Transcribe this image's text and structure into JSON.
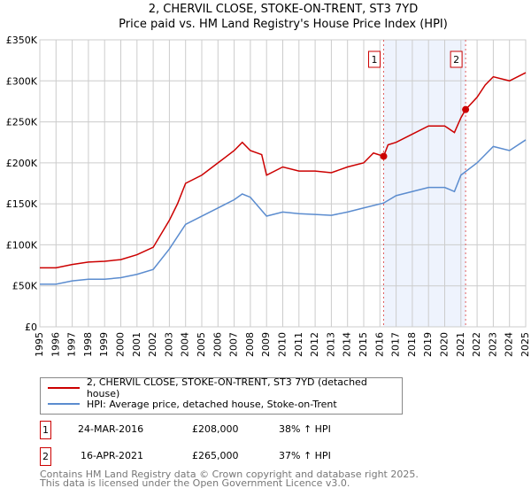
{
  "title_line1": "2, CHERVIL CLOSE, STOKE-ON-TRENT, ST3 7YD",
  "title_line2": "Price paid vs. HM Land Registry's House Price Index (HPI)",
  "chart_data": {
    "type": "line",
    "ylim": [
      0,
      350000
    ],
    "xlim": [
      1995,
      2025
    ],
    "yticks": [
      "£0",
      "£50K",
      "£100K",
      "£150K",
      "£200K",
      "£250K",
      "£300K",
      "£350K"
    ],
    "xticks": [
      "1995",
      "1996",
      "1997",
      "1998",
      "1999",
      "2000",
      "2001",
      "2002",
      "2003",
      "2004",
      "2005",
      "2006",
      "2007",
      "2008",
      "2009",
      "2010",
      "2011",
      "2012",
      "2013",
      "2014",
      "2015",
      "2016",
      "2017",
      "2018",
      "2019",
      "2020",
      "2021",
      "2022",
      "2023",
      "2024",
      "2025"
    ],
    "series": [
      {
        "name": "2, CHERVIL CLOSE, STOKE-ON-TRENT, ST3 7YD (detached house)",
        "color": "#cc0000",
        "x": [
          1995,
          1996,
          1997,
          1998,
          1999,
          2000,
          2001,
          2002,
          2003,
          2003.5,
          2004,
          2005,
          2006,
          2007,
          2007.5,
          2008,
          2008.7,
          2009,
          2010,
          2011,
          2012,
          2013,
          2014,
          2015,
          2015.6,
          2016.23,
          2016.5,
          2017,
          2018,
          2019,
          2020,
          2020.6,
          2021,
          2021.29,
          2022,
          2022.5,
          2023,
          2024,
          2025
        ],
        "y": [
          72000,
          72000,
          76000,
          79000,
          80000,
          82000,
          88000,
          97000,
          130000,
          150000,
          175000,
          185000,
          200000,
          215000,
          225000,
          215000,
          210000,
          185000,
          195000,
          190000,
          190000,
          188000,
          195000,
          200000,
          212000,
          208000,
          222000,
          225000,
          235000,
          245000,
          245000,
          237000,
          255000,
          265000,
          280000,
          295000,
          305000,
          300000,
          310000
        ]
      },
      {
        "name": "HPI: Average price, detached house, Stoke-on-Trent",
        "color": "#5b8ccf",
        "x": [
          1995,
          1996,
          1997,
          1998,
          1999,
          2000,
          2001,
          2002,
          2003,
          2004,
          2005,
          2006,
          2007,
          2007.5,
          2008,
          2009,
          2010,
          2011,
          2012,
          2013,
          2014,
          2015,
          2016.23,
          2017,
          2018,
          2019,
          2020,
          2020.6,
          2021,
          2022,
          2022.5,
          2023,
          2024,
          2025
        ],
        "y": [
          52000,
          52000,
          56000,
          58000,
          58000,
          60000,
          64000,
          70000,
          95000,
          125000,
          135000,
          145000,
          155000,
          162000,
          158000,
          135000,
          140000,
          138000,
          137000,
          136000,
          140000,
          145000,
          151000,
          160000,
          165000,
          170000,
          170000,
          165000,
          185000,
          200000,
          210000,
          220000,
          215000,
          228000
        ]
      }
    ],
    "sales": [
      {
        "label": "1",
        "x": 2016.23,
        "y": 208000
      },
      {
        "label": "2",
        "x": 2021.29,
        "y": 265000
      }
    ]
  },
  "legend": [
    "2, CHERVIL CLOSE, STOKE-ON-TRENT, ST3 7YD (detached house)",
    "HPI: Average price, detached house, Stoke-on-Trent"
  ],
  "transactions": [
    {
      "n": "1",
      "date": "24-MAR-2016",
      "price": "£208,000",
      "hpi": "38% ↑ HPI"
    },
    {
      "n": "2",
      "date": "16-APR-2021",
      "price": "£265,000",
      "hpi": "37% ↑ HPI"
    }
  ],
  "footer1": "Contains HM Land Registry data © Crown copyright and database right 2025.",
  "footer2": "This data is licensed under the Open Government Licence v3.0."
}
